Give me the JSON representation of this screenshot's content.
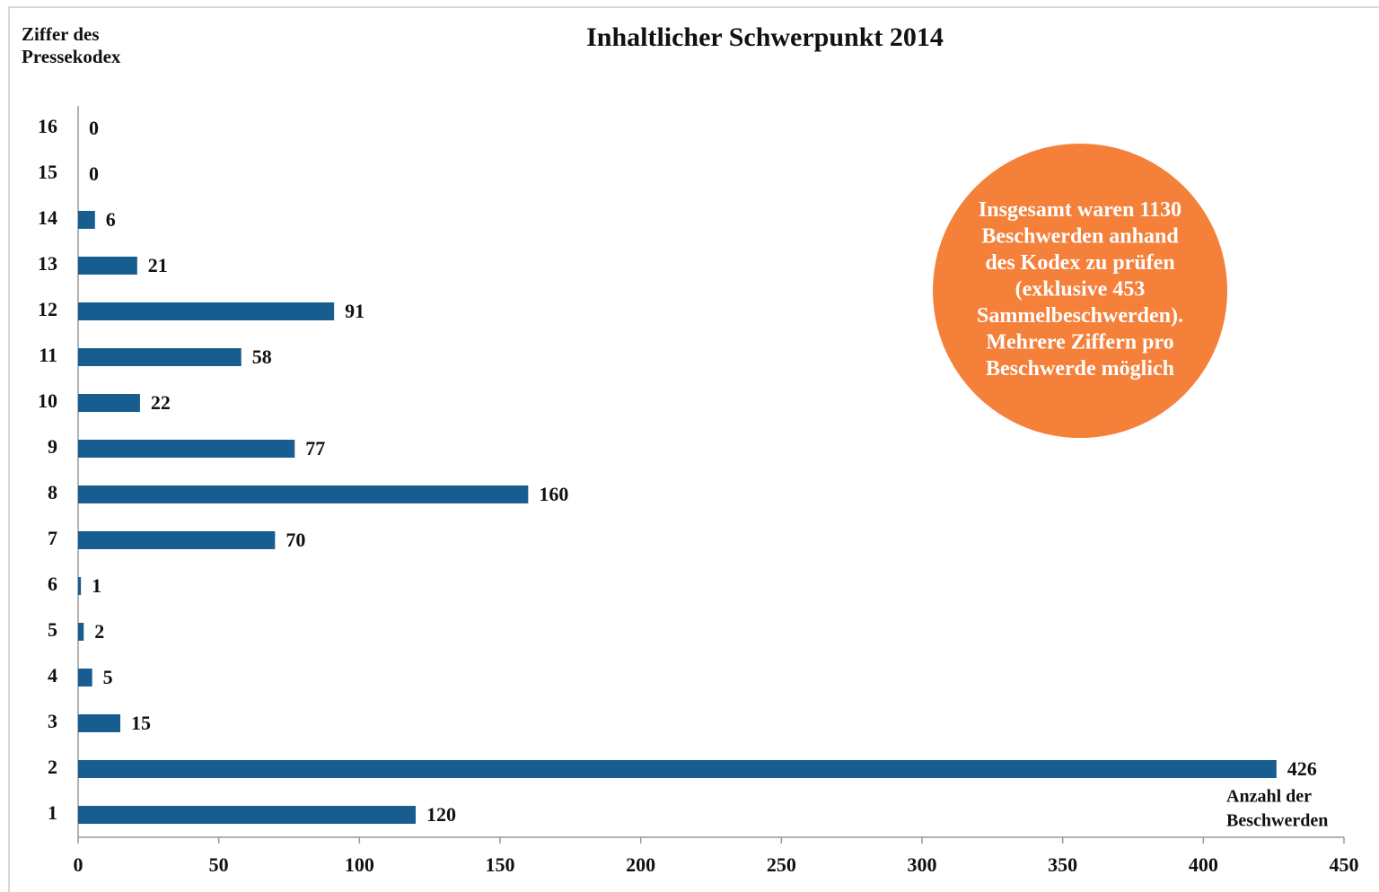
{
  "chart_data": {
    "type": "hbar",
    "title": "Inhaltlicher Schwerpunkt 2014",
    "ylabel": [
      "Ziffer des",
      "Pressekodex"
    ],
    "xlabel": [
      "Anzahl der",
      "Beschwerden"
    ],
    "categories": [
      "1",
      "2",
      "3",
      "4",
      "5",
      "6",
      "7",
      "8",
      "9",
      "10",
      "11",
      "12",
      "13",
      "14",
      "15",
      "16"
    ],
    "values": [
      120,
      426,
      15,
      5,
      2,
      1,
      70,
      160,
      77,
      22,
      58,
      91,
      21,
      6,
      0,
      0
    ],
    "color": "#175d90",
    "xlim": [
      0,
      450
    ],
    "xticks": [
      0,
      50,
      100,
      150,
      200,
      250,
      300,
      350,
      400,
      450
    ],
    "annotation": {
      "color": "#f5803a",
      "lines": [
        "Insgesamt waren 1130",
        "Beschwerden anhand",
        "des Kodex zu prüfen",
        "(exklusive 453",
        "Sammelbeschwerden).",
        "Mehrere Ziffern pro",
        "Beschwerde möglich"
      ]
    }
  }
}
